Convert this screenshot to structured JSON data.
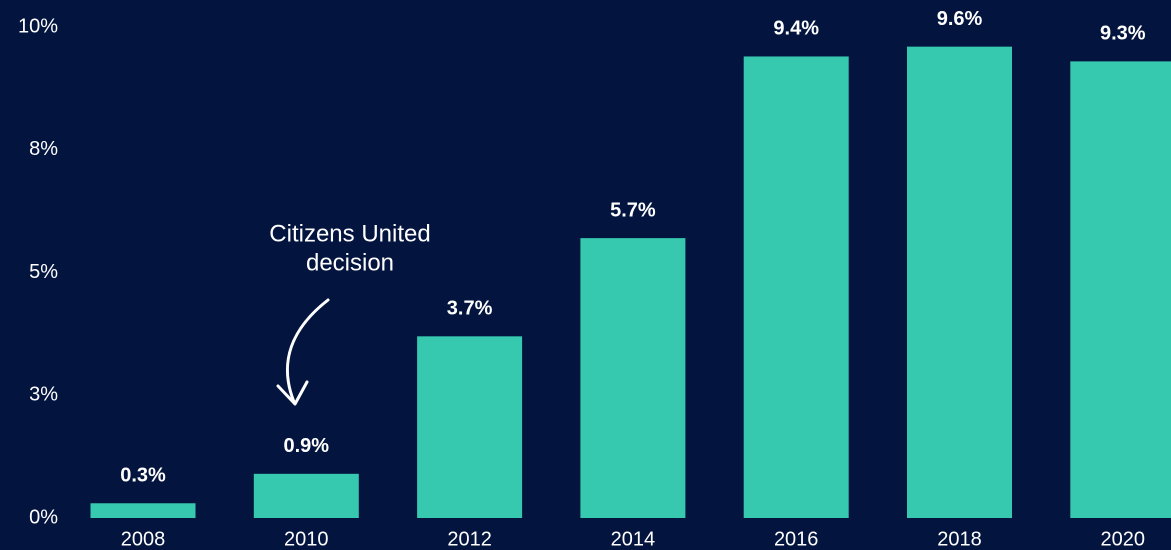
{
  "chart_data": {
    "type": "bar",
    "categories": [
      "2008",
      "2010",
      "2012",
      "2014",
      "2016",
      "2018",
      "2020"
    ],
    "values": [
      0.3,
      0.9,
      3.7,
      5.7,
      9.4,
      9.6,
      9.3
    ],
    "value_labels": [
      "0.3%",
      "0.9%",
      "3.7%",
      "5.7%",
      "9.4%",
      "9.6%",
      "9.3%"
    ],
    "color": "#36c9b0",
    "ylim": [
      0,
      10
    ],
    "yticks": [
      {
        "value": 0,
        "label": "0%"
      },
      {
        "value": 2.5,
        "label": "3%"
      },
      {
        "value": 5,
        "label": "5%"
      },
      {
        "value": 7.5,
        "label": "8%"
      },
      {
        "value": 10,
        "label": "10%"
      }
    ],
    "grid": false,
    "annotation_lines": [
      "Citizens United",
      "decision"
    ]
  }
}
